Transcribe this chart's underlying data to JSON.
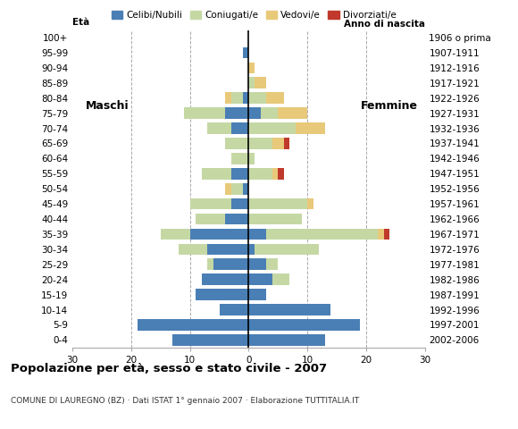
{
  "age_groups": [
    "0-4",
    "5-9",
    "10-14",
    "15-19",
    "20-24",
    "25-29",
    "30-34",
    "35-39",
    "40-44",
    "45-49",
    "50-54",
    "55-59",
    "60-64",
    "65-69",
    "70-74",
    "75-79",
    "80-84",
    "85-89",
    "90-94",
    "95-99",
    "100+"
  ],
  "birth_years": [
    "2002-2006",
    "1997-2001",
    "1992-1996",
    "1987-1991",
    "1982-1986",
    "1977-1981",
    "1972-1976",
    "1967-1971",
    "1962-1966",
    "1957-1961",
    "1952-1956",
    "1947-1951",
    "1942-1946",
    "1937-1941",
    "1932-1936",
    "1927-1931",
    "1922-1926",
    "1917-1921",
    "1912-1916",
    "1907-1911",
    "1906 o prima"
  ],
  "males": {
    "celibi": [
      13,
      19,
      5,
      9,
      8,
      6,
      7,
      10,
      4,
      3,
      1,
      3,
      0,
      0,
      3,
      4,
      1,
      0,
      0,
      1,
      0
    ],
    "coniugati": [
      0,
      0,
      0,
      0,
      0,
      1,
      5,
      5,
      5,
      7,
      2,
      5,
      3,
      4,
      4,
      7,
      2,
      0,
      0,
      0,
      0
    ],
    "vedovi": [
      0,
      0,
      0,
      0,
      0,
      0,
      0,
      0,
      0,
      0,
      1,
      0,
      0,
      0,
      0,
      0,
      1,
      0,
      0,
      0,
      0
    ],
    "divorziati": [
      0,
      0,
      0,
      0,
      0,
      0,
      0,
      0,
      0,
      0,
      0,
      0,
      0,
      0,
      0,
      0,
      0,
      0,
      0,
      0,
      0
    ]
  },
  "females": {
    "celibi": [
      13,
      19,
      14,
      3,
      4,
      3,
      1,
      3,
      0,
      0,
      0,
      0,
      0,
      0,
      0,
      2,
      0,
      0,
      0,
      0,
      0
    ],
    "coniugati": [
      0,
      0,
      0,
      0,
      3,
      2,
      11,
      19,
      9,
      10,
      0,
      4,
      1,
      4,
      8,
      3,
      3,
      1,
      0,
      0,
      0
    ],
    "vedovi": [
      0,
      0,
      0,
      0,
      0,
      0,
      0,
      1,
      0,
      1,
      0,
      1,
      0,
      2,
      5,
      5,
      3,
      2,
      1,
      0,
      0
    ],
    "divorziati": [
      0,
      0,
      0,
      0,
      0,
      0,
      0,
      1,
      0,
      0,
      0,
      1,
      0,
      1,
      0,
      0,
      0,
      0,
      0,
      0,
      0
    ]
  },
  "color_celibi": "#4a7fb5",
  "color_coniugati": "#c5d8a4",
  "color_vedovi": "#e8c97a",
  "color_divorziati": "#c0392b",
  "title": "Popolazione per età, sesso e stato civile - 2007",
  "subtitle": "COMUNE DI LAUREGNO (BZ) · Dati ISTAT 1° gennaio 2007 · Elaborazione TUTTITALIA.IT",
  "label_eta": "Età",
  "label_anno": "Anno di nascita",
  "label_maschi": "Maschi",
  "label_femmine": "Femmine",
  "xlim": 30,
  "legend_labels": [
    "Celibi/Nubili",
    "Coniugati/e",
    "Vedovi/e",
    "Divorziati/e"
  ],
  "background_color": "#ffffff",
  "grid_color": "#aaaaaa"
}
